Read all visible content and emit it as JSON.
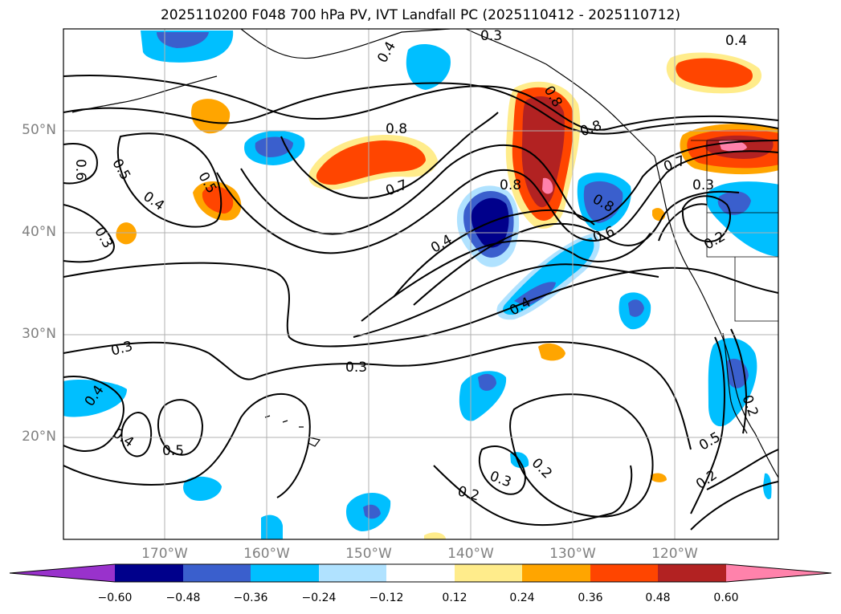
{
  "title": "2025110200 F048 700 hPa PV, IVT Landfall PC (2025110412 - 2025110712)",
  "map": {
    "lat_ticks": [
      "50°N",
      "40°N",
      "30°N",
      "20°N"
    ],
    "lon_ticks": [
      "170°W",
      "160°W",
      "150°W",
      "140°W",
      "130°W",
      "120°W"
    ],
    "grid": true,
    "coastline_color": "#000000",
    "contour_labels": [
      "0.4",
      "0.3",
      "0.4",
      "0.8",
      "0.6",
      "0.5",
      "0.5",
      "0.4",
      "0.3",
      "0.8",
      "0.7",
      "0.8",
      "0.8",
      "0.8",
      "0.6",
      "0.4",
      "0.4",
      "0.7",
      "0.3",
      "0.2",
      "0.3",
      "0.3",
      "0.4",
      "0.4",
      "0.5",
      "0.3",
      "0.2",
      "0.2",
      "0.5",
      "0.2",
      "0.2"
    ]
  },
  "colorbar": {
    "ticks": [
      "−0.60",
      "−0.48",
      "−0.36",
      "−0.24",
      "−0.12",
      "0.12",
      "0.24",
      "0.36",
      "0.48",
      "0.60"
    ],
    "colors": [
      "#9932cc",
      "#00008b",
      "#3a5fcd",
      "#00bfff",
      "#b0e2ff",
      "#ffffff",
      "#ffec8b",
      "#ffa500",
      "#ff4500",
      "#b22222",
      "#ff82ab"
    ]
  }
}
